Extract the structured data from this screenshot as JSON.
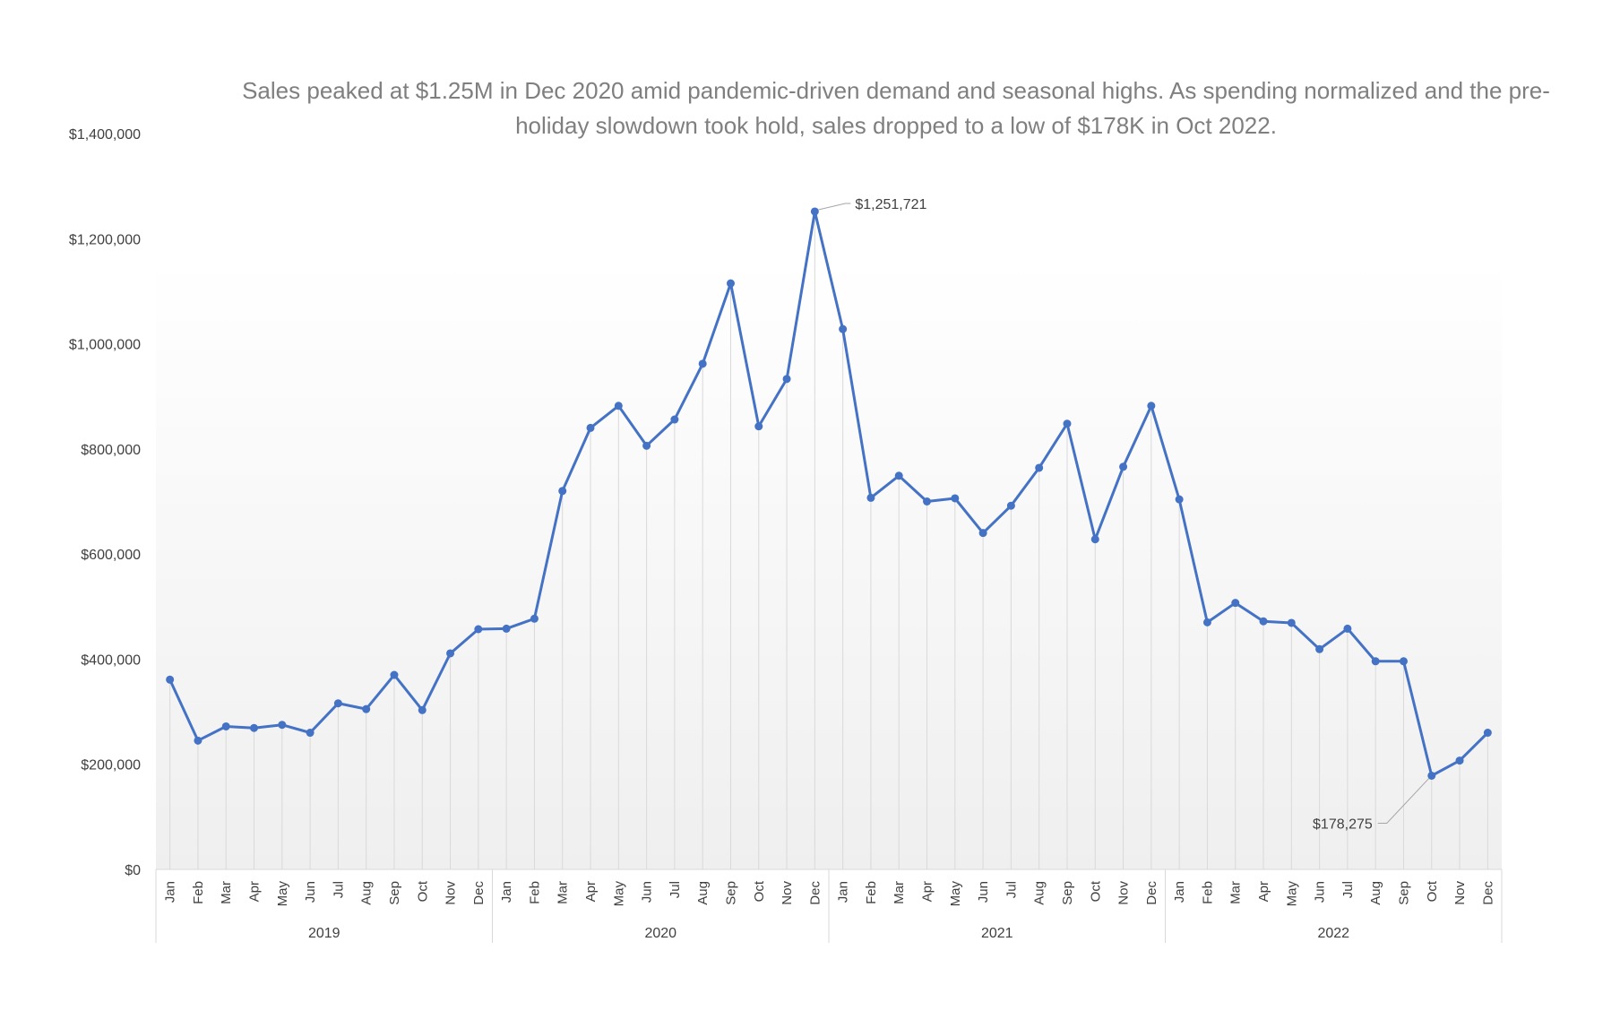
{
  "chart_data": {
    "type": "line",
    "title": "Sales peaked at $1.25M in Dec 2020 amid pandemic-driven demand and seasonal highs. As spending normalized and the pre-holiday slowdown took hold, sales dropped to a low of $178K in Oct 2022.",
    "xlabel": "",
    "ylabel": "",
    "ylim": [
      0,
      1400000
    ],
    "yticks": [
      "$0",
      "$200,000",
      "$400,000",
      "$600,000",
      "$800,000",
      "$1,000,000",
      "$1,200,000",
      "$1,400,000"
    ],
    "years": [
      "2019",
      "2020",
      "2021",
      "2022"
    ],
    "months": [
      "Jan",
      "Feb",
      "Mar",
      "Apr",
      "May",
      "Jun",
      "Jul",
      "Aug",
      "Sep",
      "Oct",
      "Nov",
      "Dec"
    ],
    "series": [
      {
        "color": "#4472c4",
        "values": [
          361000,
          245000,
          272000,
          269000,
          275000,
          260000,
          316000,
          305000,
          370000,
          303000,
          411000,
          457000,
          458000,
          477000,
          720000,
          840000,
          882000,
          806000,
          856000,
          962000,
          1115000,
          843000,
          933000,
          1251721,
          1028000,
          707000,
          749000,
          700000,
          706000,
          640000,
          692000,
          764000,
          848000,
          628000,
          766000,
          882000,
          704000,
          470000,
          507000,
          472000,
          469000,
          419000,
          458000,
          396000,
          396000,
          178275,
          207000,
          260000
        ]
      }
    ],
    "annotations": [
      {
        "index": 23,
        "text": "$1,251,721"
      },
      {
        "index": 45,
        "text": "$178,275"
      }
    ],
    "grid": false,
    "drop_lines": true,
    "plot_background": "gradient white to light gray"
  }
}
